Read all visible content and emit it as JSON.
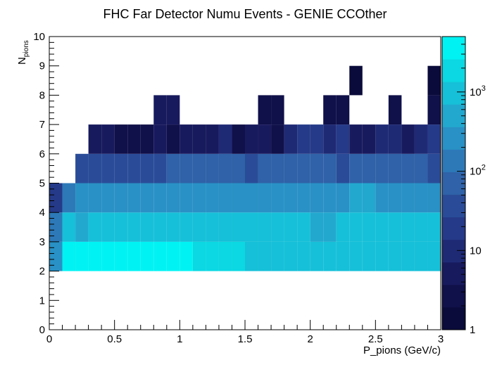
{
  "chart_data": {
    "type": "heatmap",
    "title": "FHC Far Detector Numu Events - GENIE CCOther",
    "xlabel": "P_pions (GeV/c)",
    "ylabel_main": "N",
    "ylabel_sub": "pions",
    "xlim": [
      0,
      3
    ],
    "ylim": [
      0,
      10
    ],
    "x_ticks": [
      "0",
      "0.5",
      "1",
      "1.5",
      "2",
      "2.5",
      "3"
    ],
    "y_ticks": [
      "0",
      "1",
      "2",
      "3",
      "4",
      "5",
      "6",
      "7",
      "8",
      "9",
      "10"
    ],
    "colorbar": {
      "scale": "log",
      "range": [
        1,
        5000
      ],
      "tick_labels": [
        {
          "value": 1,
          "base": "1",
          "exp": ""
        },
        {
          "value": 10,
          "base": "10",
          "exp": ""
        },
        {
          "value": 100,
          "base": "10",
          "exp": "2"
        },
        {
          "value": 1000,
          "base": "10",
          "exp": "3"
        }
      ],
      "palette": [
        "#0a0b3a",
        "#10104a",
        "#181a5e",
        "#1f2a75",
        "#253a88",
        "#2a4c98",
        "#2f62a8",
        "#2d79b8",
        "#2991c5",
        "#22a8cf",
        "#16c0d8",
        "#0bd8e2",
        "#00f2f2"
      ]
    },
    "x_bin_width": 0.1,
    "rows": [
      {
        "y": 2,
        "values": [
          320,
          5000,
          5000,
          5000,
          5000,
          5000,
          5000,
          5000,
          5000,
          5000,
          5000,
          1500,
          1500,
          1500,
          1500,
          1200,
          1200,
          1200,
          1200,
          1200,
          1000,
          1000,
          1200,
          1300,
          1000,
          1000,
          1000,
          1000,
          1000,
          800,
          800
        ]
      },
      {
        "y": 3,
        "values": [
          100,
          750,
          700,
          900,
          900,
          900,
          900,
          900,
          900,
          900,
          900,
          900,
          900,
          900,
          900,
          900,
          900,
          900,
          900,
          900,
          700,
          700,
          900,
          900,
          800,
          800,
          800,
          800,
          800,
          800,
          700
        ]
      },
      {
        "y": 4,
        "values": [
          20,
          140,
          200,
          280,
          280,
          350,
          260,
          350,
          350,
          350,
          350,
          350,
          350,
          350,
          350,
          350,
          350,
          350,
          350,
          350,
          350,
          350,
          350,
          450,
          450,
          280,
          280,
          280,
          280,
          280,
          280
        ]
      },
      {
        "y": 5,
        "values": [
          0,
          0,
          30,
          30,
          40,
          30,
          30,
          30,
          30,
          90,
          60,
          60,
          70,
          70,
          70,
          40,
          70,
          70,
          60,
          80,
          70,
          70,
          30,
          60,
          60,
          60,
          60,
          60,
          60,
          50,
          80
        ]
      },
      {
        "y": 6,
        "values": [
          0,
          0,
          0,
          6,
          4,
          3,
          3,
          3,
          5,
          2,
          6,
          5,
          4,
          8,
          2,
          6,
          6,
          3,
          13,
          15,
          15,
          8,
          17,
          6,
          7,
          12,
          12,
          5,
          10,
          16,
          10
        ]
      },
      {
        "y": 7,
        "values": [
          0,
          0,
          0,
          0,
          0,
          0,
          0,
          0,
          6,
          4,
          0,
          0,
          0,
          0,
          0,
          0,
          2,
          2,
          0,
          0,
          0,
          2,
          2,
          0,
          0,
          0,
          2,
          0,
          0,
          3,
          0
        ]
      },
      {
        "y": 8,
        "values": [
          0,
          0,
          0,
          0,
          0,
          0,
          0,
          0,
          0,
          0,
          0,
          0,
          0,
          0,
          0,
          0,
          0,
          0,
          0,
          0,
          0,
          0,
          0,
          1,
          0,
          0,
          0,
          0,
          0,
          1,
          0
        ]
      }
    ]
  }
}
